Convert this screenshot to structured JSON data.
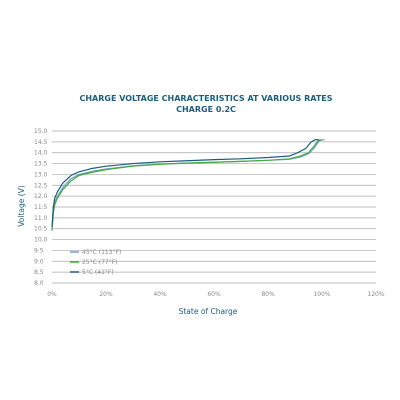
{
  "chart_data": {
    "type": "line",
    "title": "CHARGE VOLTAGE CHARACTERISTICS AT VARIOUS RATES",
    "subtitle": "CHARGE 0.2C",
    "xlabel": "State of Charge",
    "ylabel": "Voltage (V)",
    "xlim": [
      0,
      120
    ],
    "ylim": [
      8.0,
      15.0
    ],
    "x_ticks": [
      "0%",
      "20%",
      "40%",
      "60%",
      "80%",
      "100%",
      "120%"
    ],
    "y_ticks": [
      "8.0",
      "8.5",
      "9.0",
      "9.5",
      "10.0",
      "10.5",
      "11.0",
      "11.5",
      "12.0",
      "12.5",
      "13.0",
      "13.5",
      "14.0",
      "14.5",
      "15.0"
    ],
    "grid": true,
    "legend_position": "bottom-left",
    "series": [
      {
        "name": "45°C (113°F)",
        "color": "#6f9fcf",
        "points": [
          [
            0,
            10.5
          ],
          [
            0.5,
            11.3
          ],
          [
            1,
            11.7
          ],
          [
            2,
            12.0
          ],
          [
            4,
            12.4
          ],
          [
            7,
            12.8
          ],
          [
            10,
            13.0
          ],
          [
            15,
            13.15
          ],
          [
            20,
            13.25
          ],
          [
            30,
            13.4
          ],
          [
            40,
            13.48
          ],
          [
            50,
            13.52
          ],
          [
            60,
            13.56
          ],
          [
            70,
            13.6
          ],
          [
            80,
            13.65
          ],
          [
            88,
            13.7
          ],
          [
            92,
            13.8
          ],
          [
            95,
            13.95
          ],
          [
            97,
            14.2
          ],
          [
            99,
            14.55
          ],
          [
            100.5,
            14.6
          ],
          [
            101,
            14.6
          ]
        ]
      },
      {
        "name": "25°C (77°F)",
        "color": "#48ab3b",
        "points": [
          [
            0,
            10.4
          ],
          [
            0.5,
            11.2
          ],
          [
            1,
            11.6
          ],
          [
            2,
            11.9
          ],
          [
            4,
            12.3
          ],
          [
            7,
            12.7
          ],
          [
            10,
            12.95
          ],
          [
            15,
            13.1
          ],
          [
            20,
            13.22
          ],
          [
            30,
            13.38
          ],
          [
            40,
            13.47
          ],
          [
            50,
            13.52
          ],
          [
            60,
            13.56
          ],
          [
            70,
            13.6
          ],
          [
            80,
            13.65
          ],
          [
            88,
            13.72
          ],
          [
            92,
            13.85
          ],
          [
            95,
            14.0
          ],
          [
            97,
            14.3
          ],
          [
            98.5,
            14.55
          ],
          [
            100,
            14.6
          ]
        ]
      },
      {
        "name": "5°C (41°F)",
        "color": "#1c5d7e",
        "points": [
          [
            0,
            10.6
          ],
          [
            0.5,
            11.5
          ],
          [
            1,
            11.9
          ],
          [
            2,
            12.2
          ],
          [
            4,
            12.6
          ],
          [
            7,
            12.95
          ],
          [
            10,
            13.12
          ],
          [
            15,
            13.28
          ],
          [
            20,
            13.38
          ],
          [
            30,
            13.5
          ],
          [
            40,
            13.58
          ],
          [
            50,
            13.63
          ],
          [
            60,
            13.68
          ],
          [
            70,
            13.72
          ],
          [
            80,
            13.78
          ],
          [
            88,
            13.85
          ],
          [
            91,
            14.0
          ],
          [
            94,
            14.2
          ],
          [
            96,
            14.5
          ],
          [
            97.5,
            14.6
          ],
          [
            99,
            14.6
          ]
        ]
      }
    ]
  }
}
